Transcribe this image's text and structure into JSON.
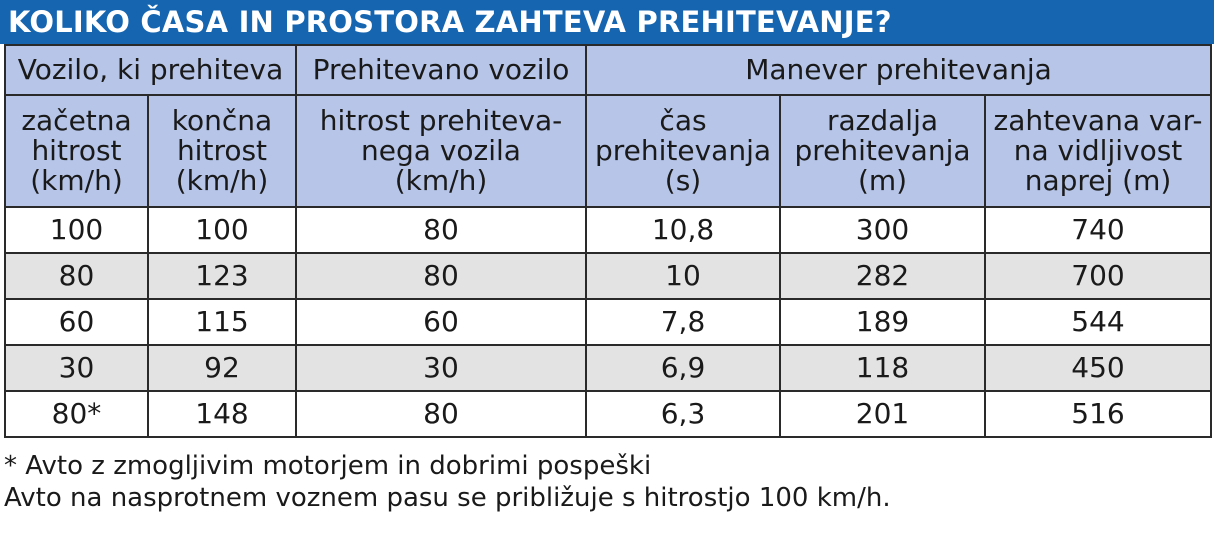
{
  "title": "KOLIKO ČASA IN PROSTORA ZAHTEVA PREHITEVANJE?",
  "group_headers": {
    "overtaking": "Vozilo, ki prehiteva",
    "overtaken": "Prehitevano vozilo",
    "maneuver": "Manever prehitevanja"
  },
  "columns": [
    [
      "začetna",
      "hitrost",
      "(km/h)"
    ],
    [
      "končna",
      "hitrost",
      "(km/h)"
    ],
    [
      "hitrost prehiteva-",
      "nega vozila",
      "(km/h)"
    ],
    [
      "čas",
      "prehitevanja",
      "(s)"
    ],
    [
      "razdalja",
      "prehitevanja",
      "(m)"
    ],
    [
      "zahtevana var-",
      "na vidljivost",
      "naprej (m)"
    ]
  ],
  "rows": [
    [
      "100",
      "100",
      "80",
      "10,8",
      "300",
      "740"
    ],
    [
      "80",
      "123",
      "80",
      "10",
      "282",
      "700"
    ],
    [
      "60",
      "115",
      "60",
      "7,8",
      "189",
      "544"
    ],
    [
      "30",
      "92",
      "30",
      "6,9",
      "118",
      "450"
    ],
    [
      "80*",
      "148",
      "80",
      "6,3",
      "201",
      "516"
    ]
  ],
  "notes": [
    "* Avto z zmogljivim motorjem in dobrimi pospeški",
    "Avto na nasprotnem voznem pasu se približuje s hitrostjo 100 km/h."
  ]
}
